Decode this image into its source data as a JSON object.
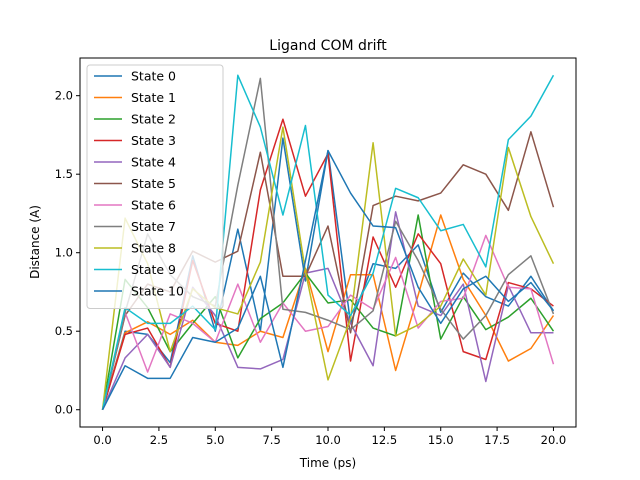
{
  "chart_data": {
    "type": "line",
    "title": "Ligand COM drift",
    "xlabel": "Time (ps)",
    "ylabel": "Distance (A)",
    "xlim": [
      -1.0,
      21.0
    ],
    "ylim": [
      -0.11,
      2.24
    ],
    "xticks": [
      "0.0",
      "2.5",
      "5.0",
      "7.5",
      "10.0",
      "12.5",
      "15.0",
      "17.5",
      "20.0"
    ],
    "yticks": [
      "0.0",
      "0.5",
      "1.0",
      "1.5",
      "2.0"
    ],
    "grid": false,
    "legend_position": "upper-left",
    "x": [
      0,
      1,
      2,
      3,
      4,
      5,
      6,
      7,
      8,
      9,
      10,
      11,
      12,
      13,
      14,
      15,
      16,
      17,
      18,
      19,
      20
    ],
    "series": [
      {
        "name": "State 0",
        "color": "#1f77b4",
        "values": [
          0.0,
          0.5,
          0.48,
          0.3,
          0.98,
          0.5,
          1.15,
          0.5,
          1.73,
          0.82,
          1.65,
          0.55,
          0.93,
          0.9,
          1.05,
          0.62,
          0.87,
          0.72,
          0.66,
          0.85,
          0.63
        ]
      },
      {
        "name": "State 1",
        "color": "#ff7f0e",
        "values": [
          0.0,
          0.49,
          0.56,
          0.48,
          0.57,
          0.43,
          0.41,
          0.5,
          0.46,
          0.9,
          0.37,
          0.86,
          0.86,
          0.25,
          0.73,
          1.24,
          0.83,
          0.6,
          0.31,
          0.39,
          0.6
        ]
      },
      {
        "name": "State 2",
        "color": "#2ca02c",
        "values": [
          0.0,
          0.83,
          0.65,
          0.37,
          0.55,
          0.72,
          0.33,
          0.58,
          0.68,
          0.87,
          0.68,
          0.7,
          0.52,
          0.47,
          1.24,
          0.45,
          0.72,
          0.51,
          0.59,
          0.71,
          0.5
        ]
      },
      {
        "name": "State 3",
        "color": "#d62728",
        "values": [
          0.0,
          0.48,
          0.52,
          0.27,
          0.95,
          0.55,
          0.5,
          1.4,
          1.85,
          1.36,
          1.63,
          0.31,
          1.1,
          0.78,
          1.12,
          0.93,
          0.37,
          0.32,
          0.81,
          0.77,
          0.66
        ]
      },
      {
        "name": "State 4",
        "color": "#9467bd",
        "values": [
          0.0,
          0.33,
          0.48,
          0.27,
          0.78,
          0.6,
          0.27,
          0.26,
          0.32,
          0.87,
          0.9,
          0.55,
          0.28,
          1.26,
          0.66,
          0.6,
          0.8,
          0.18,
          0.79,
          0.49,
          0.49
        ]
      },
      {
        "name": "State 5",
        "color": "#8c564b",
        "values": [
          0.0,
          0.6,
          0.8,
          0.75,
          1.01,
          0.94,
          1.01,
          1.64,
          0.85,
          0.85,
          1.17,
          0.49,
          1.3,
          1.36,
          1.33,
          1.38,
          1.56,
          1.5,
          1.27,
          1.77,
          1.29
        ]
      },
      {
        "name": "State 6",
        "color": "#e377c2",
        "values": [
          0.0,
          0.62,
          0.24,
          0.61,
          0.55,
          0.43,
          0.8,
          0.43,
          0.68,
          0.5,
          0.53,
          0.73,
          0.64,
          0.97,
          0.52,
          0.69,
          0.71,
          1.11,
          0.78,
          0.77,
          0.29
        ]
      },
      {
        "name": "State 7",
        "color": "#7f7f7f",
        "values": [
          0.0,
          0.62,
          1.12,
          0.86,
          0.72,
          0.66,
          1.43,
          2.11,
          0.64,
          0.62,
          0.57,
          0.51,
          0.63,
          1.2,
          0.95,
          0.64,
          0.45,
          0.6,
          0.86,
          0.98,
          0.61
        ]
      },
      {
        "name": "State 8",
        "color": "#bcbd22",
        "values": [
          0.0,
          1.22,
          0.93,
          0.37,
          0.77,
          0.65,
          0.61,
          0.94,
          1.8,
          0.88,
          0.19,
          0.58,
          1.7,
          0.47,
          0.54,
          0.66,
          0.96,
          0.73,
          1.67,
          1.23,
          0.93
        ]
      },
      {
        "name": "State 9",
        "color": "#17becf",
        "values": [
          0.0,
          0.65,
          0.55,
          0.55,
          0.66,
          0.51,
          2.13,
          1.8,
          1.24,
          1.81,
          0.73,
          0.6,
          0.87,
          1.41,
          1.35,
          1.14,
          1.18,
          0.91,
          1.72,
          1.87,
          2.13
        ]
      },
      {
        "name": "State 10",
        "color": "#1f77b4",
        "values": [
          0.0,
          0.28,
          0.2,
          0.2,
          0.46,
          0.43,
          0.52,
          0.85,
          0.27,
          0.95,
          1.65,
          1.38,
          1.17,
          1.16,
          0.78,
          0.55,
          0.77,
          0.85,
          0.69,
          0.81,
          0.63
        ]
      }
    ]
  }
}
